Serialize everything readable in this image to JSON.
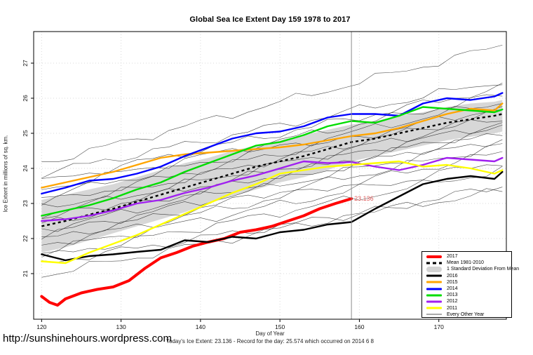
{
  "title": "Global Sea Ice Extent Day 159 1978 to 2017",
  "footer": {
    "url": "http://sunshinehours.wordpress.com",
    "note": "Today's Ice Extent: 23.136  - Record for the day: 25.574 which occurred on 2014 6 8"
  },
  "chart_data": {
    "type": "line",
    "title": "Global Sea Ice Extent Day 159 1978 to 2017",
    "xlabel": "Day of Year",
    "ylabel": "Ice Extent in millions of sq. km.",
    "xlim": [
      119,
      178.5
    ],
    "ylim": [
      19.7,
      27.9
    ],
    "xticks": [
      120,
      130,
      140,
      150,
      160,
      170
    ],
    "yticks": [
      21,
      22,
      23,
      24,
      25,
      26,
      27
    ],
    "grid": "dotted",
    "grid_color": "#d9d9d9",
    "vline_x": 159,
    "vline_color": "#8c8c8c",
    "annotation": {
      "text": "23.136",
      "x": 159,
      "y": 23.136,
      "color": "#e06060"
    },
    "x": [
      120,
      123,
      126,
      129,
      132,
      135,
      138,
      141,
      144,
      147,
      150,
      153,
      156,
      159,
      162,
      165,
      168,
      171,
      174,
      177,
      178
    ],
    "band": {
      "name": "1 Standard Deviation From Mean",
      "color": "#d3d3d3",
      "top": [
        23.1,
        23.25,
        23.4,
        23.55,
        23.75,
        23.95,
        24.15,
        24.3,
        24.5,
        24.65,
        24.8,
        24.95,
        25.1,
        25.25,
        25.35,
        25.5,
        25.6,
        25.75,
        25.85,
        25.9,
        25.95
      ],
      "bottom": [
        21.6,
        21.75,
        21.95,
        22.15,
        22.35,
        22.55,
        22.75,
        23.0,
        23.2,
        23.4,
        23.6,
        23.75,
        23.95,
        24.2,
        24.35,
        24.5,
        24.65,
        24.8,
        24.9,
        25.0,
        25.05
      ]
    },
    "mean": {
      "name": "Mean 1981-2010",
      "color": "#000000",
      "style": "dashed",
      "values": [
        22.35,
        22.5,
        22.68,
        22.85,
        23.05,
        23.25,
        23.45,
        23.65,
        23.85,
        24.05,
        24.2,
        24.35,
        24.55,
        24.75,
        24.85,
        25.0,
        25.15,
        25.3,
        25.4,
        25.5,
        25.55
      ]
    },
    "series": [
      {
        "name": "2017",
        "color": "#ff0000",
        "width": 4,
        "x": [
          120,
          121,
          122,
          123,
          125,
          127,
          129,
          131,
          133,
          135,
          137,
          139,
          141,
          143,
          145,
          147,
          149,
          151,
          153,
          155,
          157,
          159
        ],
        "values": [
          20.35,
          20.18,
          20.1,
          20.28,
          20.45,
          20.55,
          20.62,
          20.8,
          21.15,
          21.45,
          21.6,
          21.78,
          21.9,
          22.0,
          22.18,
          22.25,
          22.35,
          22.5,
          22.65,
          22.85,
          23.0,
          23.136
        ]
      },
      {
        "name": "2016",
        "color": "#000000",
        "width": 2.4,
        "values": [
          21.55,
          21.38,
          21.5,
          21.55,
          21.62,
          21.68,
          21.95,
          21.9,
          22.05,
          22.0,
          22.18,
          22.25,
          22.4,
          22.47,
          22.85,
          23.2,
          23.55,
          23.7,
          23.78,
          23.7,
          23.9
        ]
      },
      {
        "name": "2015",
        "color": "#ffa500",
        "width": 2.4,
        "values": [
          23.45,
          23.6,
          23.75,
          23.9,
          24.1,
          24.3,
          24.4,
          24.45,
          24.5,
          24.55,
          24.6,
          24.68,
          24.8,
          24.92,
          25.0,
          25.15,
          25.35,
          25.55,
          25.7,
          25.65,
          25.85
        ]
      },
      {
        "name": "2014",
        "color": "#0000ff",
        "width": 2.4,
        "values": [
          23.28,
          23.45,
          23.65,
          23.7,
          23.85,
          24.05,
          24.35,
          24.6,
          24.85,
          25.0,
          25.05,
          25.2,
          25.45,
          25.55,
          25.55,
          25.5,
          25.85,
          26.0,
          25.95,
          26.05,
          26.15
        ]
      },
      {
        "name": "2013",
        "color": "#00dd00",
        "width": 2.4,
        "values": [
          22.65,
          22.8,
          22.95,
          23.15,
          23.4,
          23.6,
          23.9,
          24.15,
          24.4,
          24.65,
          24.75,
          24.95,
          25.2,
          25.35,
          25.3,
          25.5,
          25.75,
          25.7,
          25.65,
          25.6,
          25.68
        ]
      },
      {
        "name": "2012",
        "color": "#a020f0",
        "width": 2.4,
        "values": [
          22.5,
          22.55,
          22.65,
          22.8,
          23.0,
          23.1,
          23.3,
          23.45,
          23.65,
          23.8,
          24.0,
          24.2,
          24.15,
          24.18,
          24.05,
          23.95,
          24.1,
          24.3,
          24.25,
          24.2,
          24.3
        ]
      },
      {
        "name": "2011",
        "color": "#ffff00",
        "width": 2.4,
        "values": [
          21.35,
          21.3,
          21.6,
          21.85,
          22.1,
          22.4,
          22.7,
          23.0,
          23.3,
          23.55,
          23.85,
          23.95,
          24.05,
          24.1,
          24.15,
          24.2,
          24.05,
          24.1,
          24.0,
          23.85,
          23.95
        ]
      }
    ],
    "background_years": {
      "name": "Every Other Year",
      "color": "#1a1a1a",
      "x_range": [
        120,
        178
      ],
      "start_end": [
        [
          24.15,
          27.5
        ],
        [
          23.85,
          26.5
        ],
        [
          23.6,
          26.3
        ],
        [
          23.4,
          26.1
        ],
        [
          23.2,
          25.9
        ],
        [
          23.0,
          25.75
        ],
        [
          22.85,
          25.6
        ],
        [
          22.7,
          25.45
        ],
        [
          22.55,
          25.3
        ],
        [
          22.4,
          25.15
        ],
        [
          22.25,
          25.0
        ],
        [
          22.1,
          24.85
        ],
        [
          21.95,
          24.65
        ],
        [
          21.8,
          24.45
        ],
        [
          21.65,
          24.2
        ],
        [
          21.45,
          23.95
        ],
        [
          21.3,
          23.35
        ],
        [
          20.95,
          23.5
        ]
      ]
    },
    "legend": {
      "position": "bottom-right",
      "entries": [
        {
          "label": "2017",
          "color": "#ff0000",
          "style": "thick"
        },
        {
          "label": "Mean 1981-2010",
          "color": "#000000",
          "style": "dashed"
        },
        {
          "label": "1 Standard Deviation From Mean",
          "color": "#d3d3d3",
          "style": "band"
        },
        {
          "label": "2016",
          "color": "#000000",
          "style": "line"
        },
        {
          "label": "2015",
          "color": "#ffa500",
          "style": "line"
        },
        {
          "label": "2014",
          "color": "#0000ff",
          "style": "line"
        },
        {
          "label": "2013",
          "color": "#00dd00",
          "style": "line"
        },
        {
          "label": "2012",
          "color": "#a020f0",
          "style": "line"
        },
        {
          "label": "2011",
          "color": "#ffff00",
          "style": "line"
        },
        {
          "label": "Every Other Year",
          "color": "#555555",
          "style": "thin"
        }
      ]
    }
  }
}
